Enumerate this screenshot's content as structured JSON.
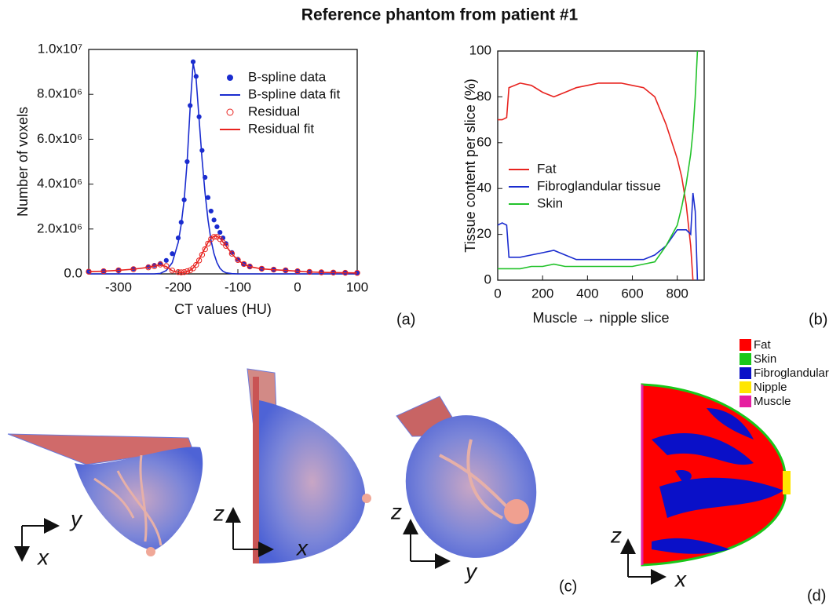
{
  "title": "Reference phantom from patient #1",
  "chart_data": [
    {
      "type": "line",
      "panel_label": "(a)",
      "x_label": "CT values (HU)",
      "y_label": "Number of voxels",
      "xlim": [
        -350,
        100
      ],
      "xticks": [
        -300,
        -200,
        -100,
        0,
        100
      ],
      "ylim": [
        0,
        10000000
      ],
      "yticks": [
        {
          "value": 0,
          "label": "0.0"
        },
        {
          "value": 2000000,
          "label": "2.0x10⁶"
        },
        {
          "value": 4000000,
          "label": "4.0x10⁶"
        },
        {
          "value": 6000000,
          "label": "6.0x10⁶"
        },
        {
          "value": 8000000,
          "label": "8.0x10⁶"
        },
        {
          "value": 10000000,
          "label": "1.0x10⁷"
        }
      ],
      "legend": "upper right",
      "x": [
        -350,
        -325,
        -300,
        -275,
        -250,
        -240,
        -230,
        -220,
        -210,
        -200,
        -195,
        -190,
        -185,
        -180,
        -175,
        -170,
        -165,
        -160,
        -155,
        -150,
        -145,
        -140,
        -135,
        -130,
        -125,
        -120,
        -110,
        -100,
        -90,
        -80,
        -60,
        -40,
        -20,
        0,
        20,
        40,
        60,
        80,
        100
      ],
      "series": [
        {
          "name": "B-spline data",
          "color": "#1a2ccf",
          "marker": "dot",
          "values": [
            110000,
            130000,
            170000,
            230000,
            320000,
            380000,
            460000,
            600000,
            900000,
            1600000,
            2300000,
            3300000,
            5000000,
            7500000,
            9450000,
            8800000,
            7000000,
            5500000,
            4300000,
            3400000,
            2800000,
            2400000,
            2100000,
            1850000,
            1600000,
            1350000,
            950000,
            650000,
            450000,
            330000,
            230000,
            190000,
            160000,
            120000,
            90000,
            70000,
            60000,
            50000,
            45000
          ]
        },
        {
          "name": "B-spline data fit",
          "color": "#1a2ccf",
          "marker": "line",
          "values": [
            0,
            0,
            0,
            0,
            0,
            0,
            20000,
            150000,
            500000,
            1400000,
            2200000,
            3300000,
            5000000,
            7400000,
            9400000,
            8700000,
            6900000,
            5100000,
            3600000,
            2400000,
            1500000,
            900000,
            500000,
            250000,
            120000,
            50000,
            10000,
            0,
            0,
            0,
            0,
            0,
            0,
            0,
            0,
            0,
            0,
            0,
            0
          ]
        },
        {
          "name": "Residual",
          "color": "#e8231f",
          "marker": "circle",
          "values": [
            100000,
            120000,
            160000,
            210000,
            290000,
            340000,
            420000,
            350000,
            150000,
            80000,
            70000,
            80000,
            120000,
            160000,
            250000,
            400000,
            600000,
            850000,
            1100000,
            1350000,
            1550000,
            1650000,
            1650000,
            1550000,
            1400000,
            1250000,
            900000,
            620000,
            440000,
            330000,
            230000,
            190000,
            160000,
            120000,
            90000,
            70000,
            60000,
            50000,
            45000
          ]
        },
        {
          "name": "Residual fit",
          "color": "#e8231f",
          "marker": "line",
          "values": [
            100000,
            120000,
            160000,
            210000,
            290000,
            350000,
            400000,
            330000,
            140000,
            70000,
            60000,
            70000,
            110000,
            160000,
            260000,
            420000,
            640000,
            900000,
            1150000,
            1400000,
            1580000,
            1680000,
            1680000,
            1580000,
            1420000,
            1250000,
            890000,
            610000,
            430000,
            320000,
            225000,
            185000,
            155000,
            118000,
            88000,
            68000,
            58000,
            48000,
            43000
          ]
        }
      ]
    },
    {
      "type": "line",
      "panel_label": "(b)",
      "x_label": "Muscle → nipple slice",
      "y_label": "Tissue content per slice (%)",
      "xlim": [
        0,
        920
      ],
      "xticks": [
        0,
        200,
        400,
        600,
        800
      ],
      "ylim": [
        0,
        100
      ],
      "yticks": [
        0,
        20,
        40,
        60,
        80,
        100
      ],
      "legend": "center left",
      "x": [
        0,
        20,
        40,
        50,
        100,
        150,
        200,
        250,
        300,
        350,
        400,
        450,
        500,
        550,
        600,
        650,
        700,
        750,
        800,
        820,
        840,
        860,
        870,
        880,
        890
      ],
      "series": [
        {
          "name": "Fat",
          "color": "#e8231f",
          "marker": "line",
          "values": [
            70,
            70,
            71,
            84,
            86,
            85,
            82,
            80,
            82,
            84,
            85,
            86,
            86,
            86,
            85,
            84,
            80,
            68,
            53,
            45,
            33,
            15,
            0,
            null,
            null
          ]
        },
        {
          "name": "Fibroglandular tissue",
          "color": "#1a2ccf",
          "marker": "line",
          "values": [
            24,
            25,
            24,
            10,
            10,
            11,
            12,
            13,
            11,
            9,
            9,
            9,
            9,
            9,
            9,
            9,
            11,
            15,
            22,
            22,
            22,
            20,
            38,
            30,
            0
          ]
        },
        {
          "name": "Skin",
          "color": "#22c22a",
          "marker": "line",
          "values": [
            5,
            5,
            5,
            5,
            5,
            6,
            6,
            7,
            6,
            6,
            6,
            6,
            6,
            6,
            6,
            7,
            8,
            15,
            24,
            32,
            42,
            55,
            65,
            80,
            100
          ]
        }
      ]
    }
  ],
  "panel_c": {
    "label": "(c)",
    "axes": [
      [
        "y",
        "x"
      ],
      [
        "z",
        "x"
      ],
      [
        "z",
        "y"
      ]
    ]
  },
  "panel_d": {
    "label": "(d)",
    "axes": [
      "z",
      "x"
    ],
    "legend": [
      {
        "name": "Fat",
        "color": "#ff0000"
      },
      {
        "name": "Skin",
        "color": "#19c819"
      },
      {
        "name": "Fibroglandular",
        "color": "#0a10c8"
      },
      {
        "name": "Nipple",
        "color": "#ffe600"
      },
      {
        "name": "Muscle",
        "color": "#e61ea0"
      }
    ]
  }
}
